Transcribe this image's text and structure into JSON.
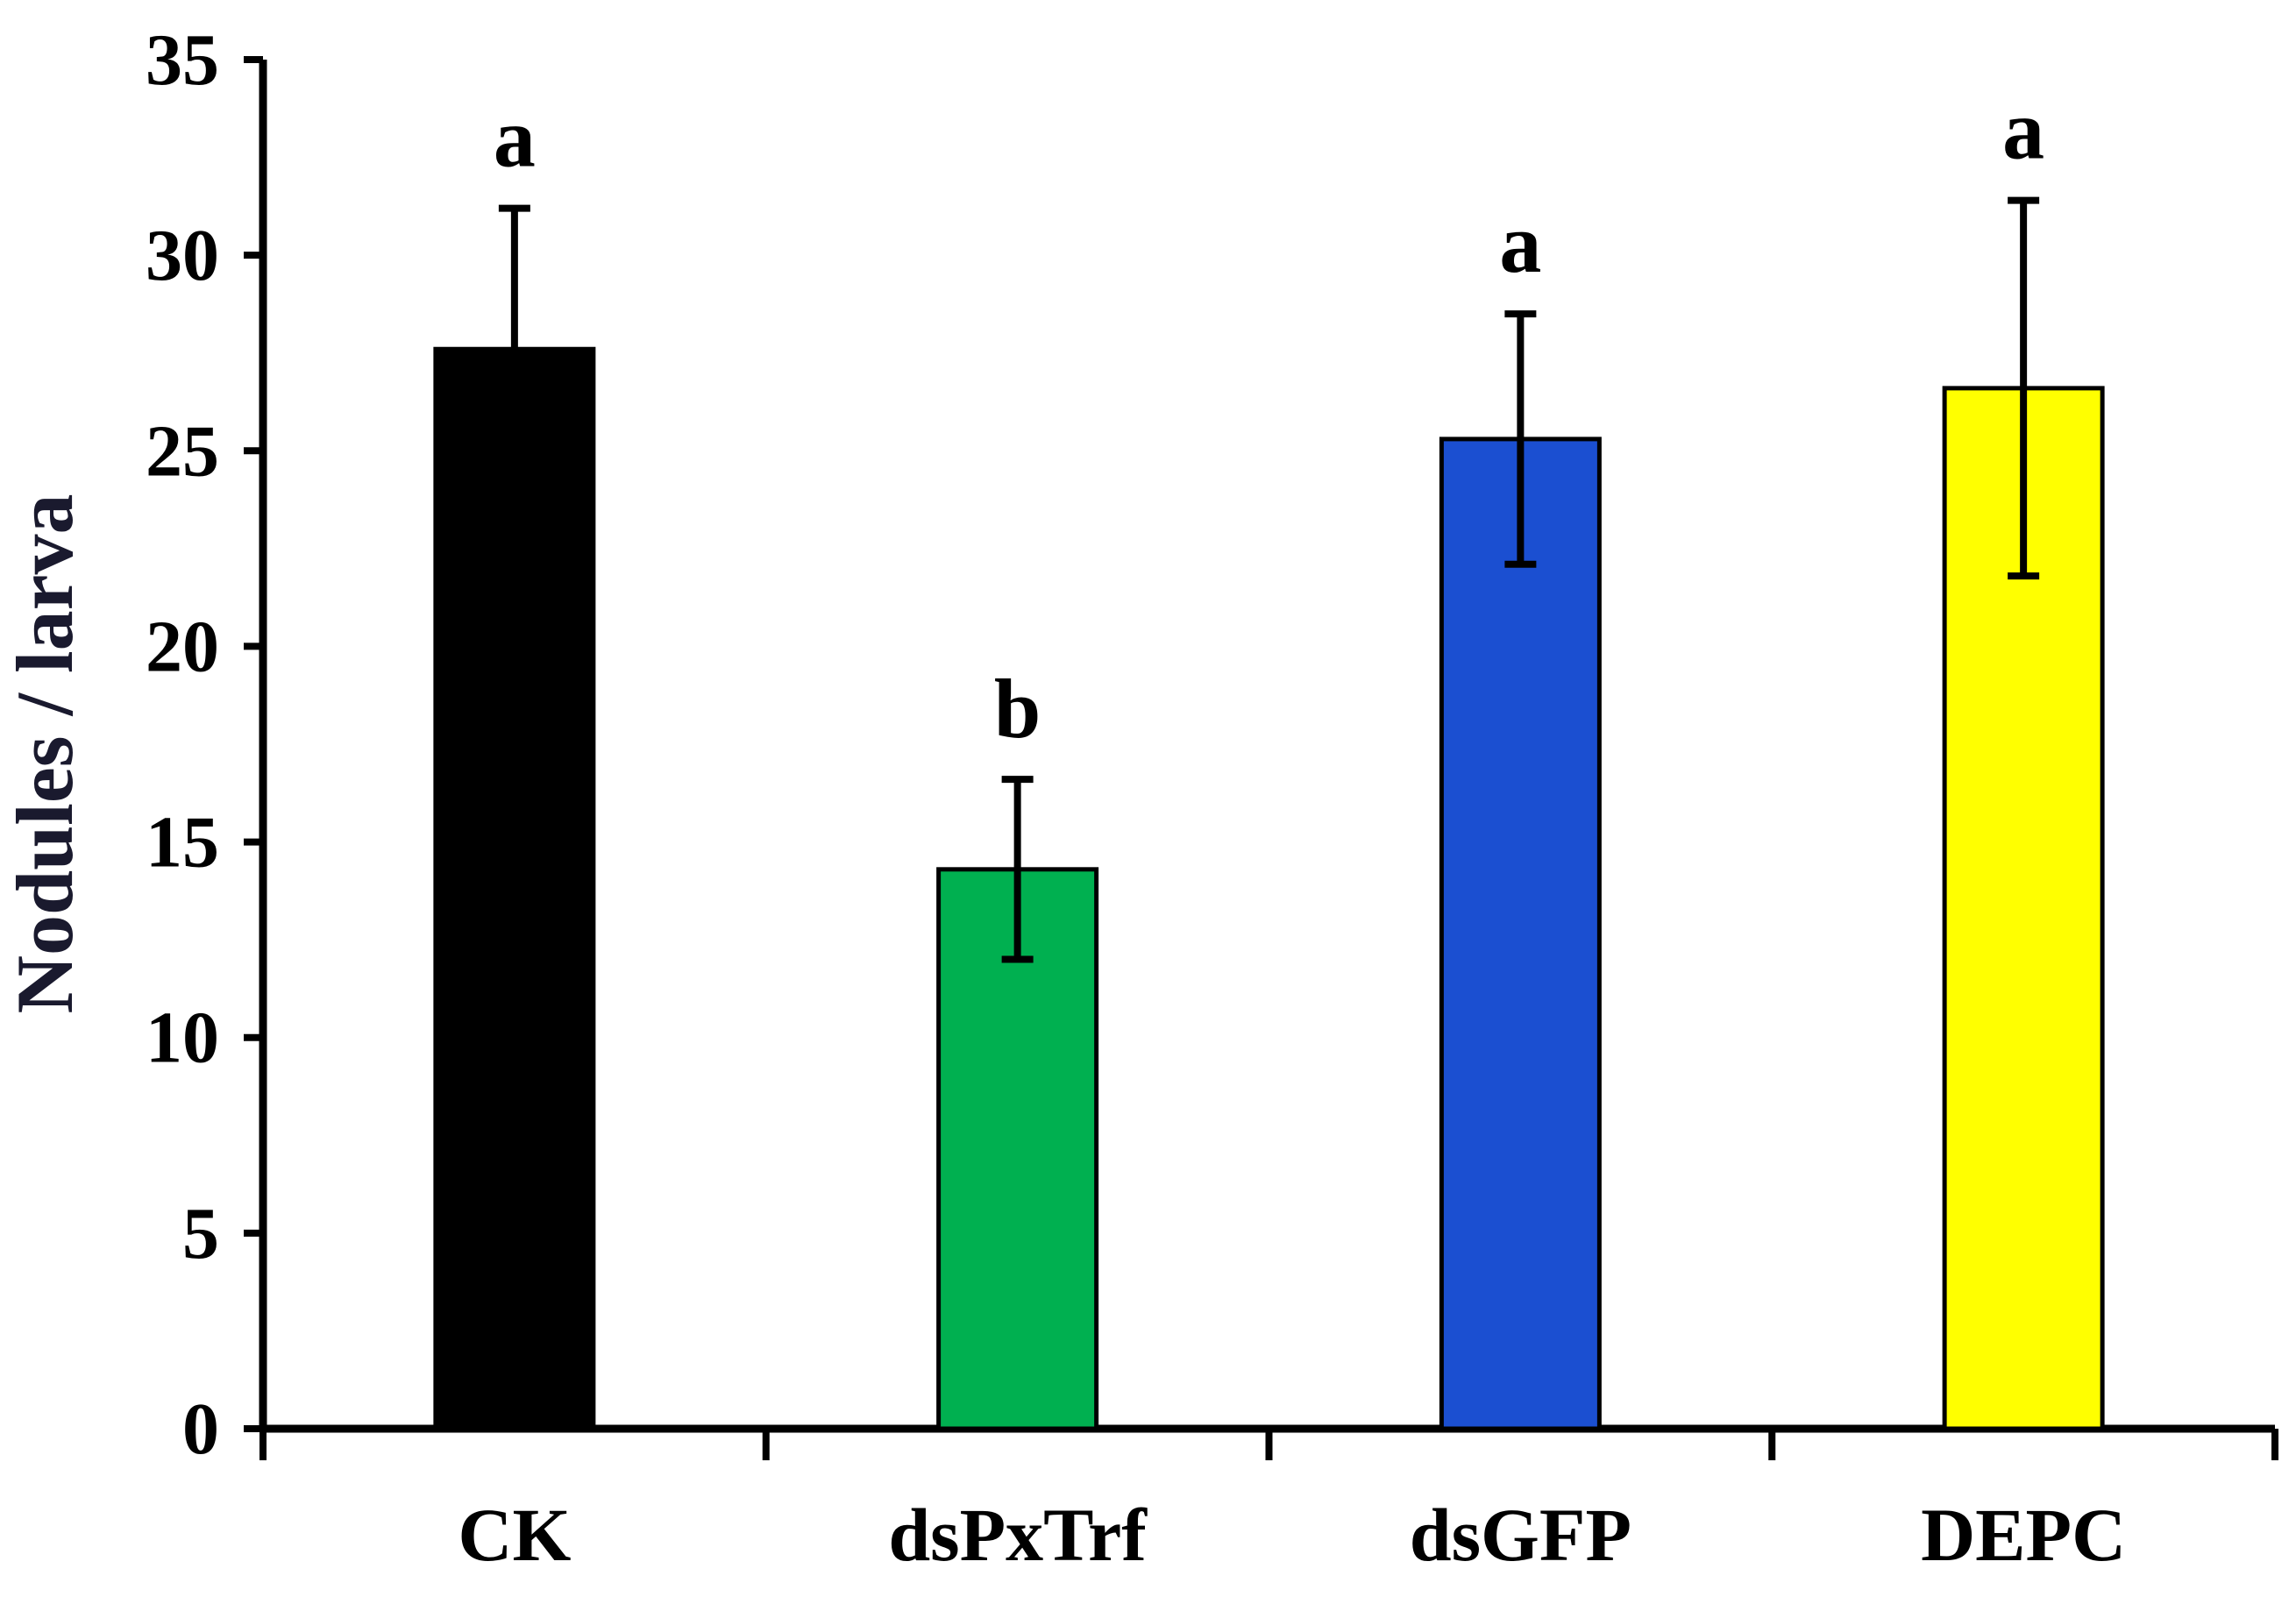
{
  "chart_data": {
    "type": "bar",
    "title": "",
    "xlabel": "",
    "ylabel": "Nodules / larva",
    "ylim": [
      0,
      35
    ],
    "yticks": [
      "0",
      "5",
      "10",
      "15",
      "20",
      "25",
      "30",
      "35"
    ],
    "categories": [
      "CK",
      "dsPxTrf",
      "dsGFP",
      "DEPC"
    ],
    "values": [
      27.6,
      14.3,
      25.3,
      26.6
    ],
    "errors": [
      3.6,
      2.3,
      3.2,
      4.8
    ],
    "significance": [
      "a",
      "b",
      "a",
      "a"
    ],
    "colors": [
      "#000000",
      "#00b050",
      "#1b4fd1",
      "#ffff00"
    ],
    "grid": false,
    "legend": "none"
  }
}
